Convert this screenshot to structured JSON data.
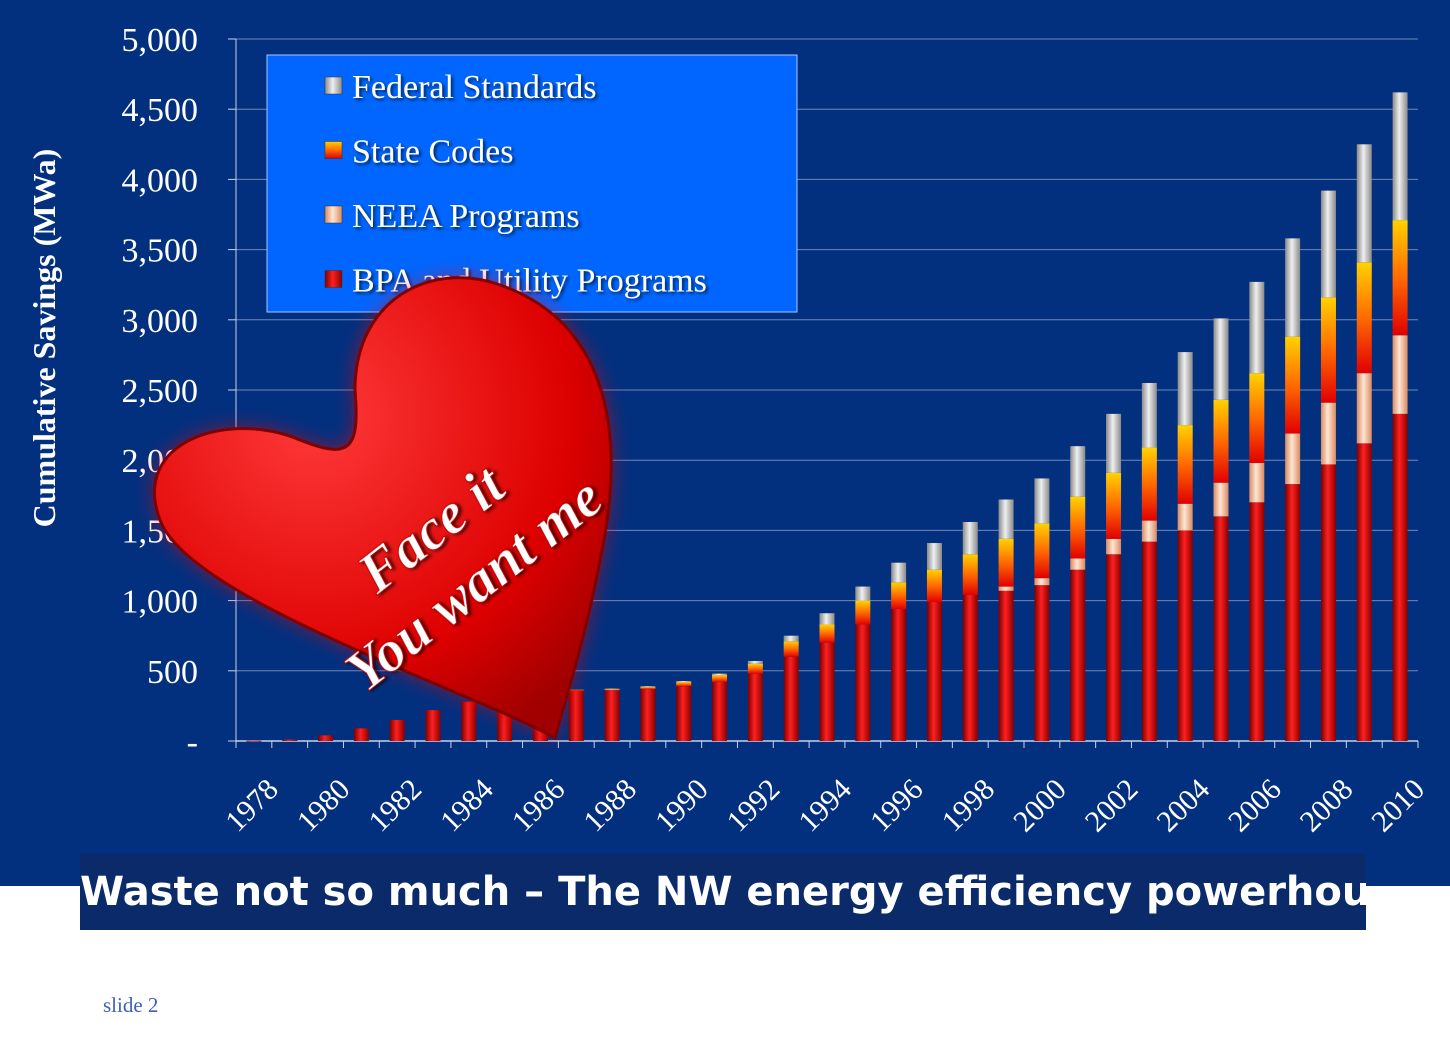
{
  "footer": {
    "title": "Waste not so much – The NW energy efficiency powerhouse"
  },
  "slide_label": "slide 2",
  "sticker": {
    "line1": "Face it",
    "line2": "You want me"
  },
  "colors": {
    "background": "#02307f",
    "legend_bg": "#0066ff",
    "bpa": "#d00000",
    "neea": "#f2b78f",
    "state": "#ffb000",
    "federal": "#b8b8b8",
    "heart": "#e00000"
  },
  "chart_data": {
    "type": "bar",
    "stacked": true,
    "title": "",
    "ylabel": "Cumulative Savings (MWa)",
    "xlabel": "",
    "ylim": [
      0,
      5000
    ],
    "grid": true,
    "legend_position": "top-left",
    "ytick_labels": [
      "-",
      "500",
      "1,000",
      "1,500",
      "2,000",
      "2,500",
      "3,000",
      "3,500",
      "4,000",
      "4,500",
      "5,000"
    ],
    "categories": [
      "1978",
      "1979",
      "1980",
      "1981",
      "1982",
      "1983",
      "1984",
      "1985",
      "1986",
      "1987",
      "1988",
      "1989",
      "1990",
      "1991",
      "1992",
      "1993",
      "1994",
      "1995",
      "1996",
      "1997",
      "1998",
      "1999",
      "2000",
      "2001",
      "2002",
      "2003",
      "2004",
      "2005",
      "2006",
      "2007",
      "2008",
      "2009",
      "2010"
    ],
    "xtick_labels": [
      "1978",
      "1980",
      "1982",
      "1984",
      "1986",
      "1988",
      "1990",
      "1992",
      "1994",
      "1996",
      "1998",
      "2000",
      "2002",
      "2004",
      "2006",
      "2008",
      "2010"
    ],
    "series": [
      {
        "name": "BPA and Utility Programs",
        "color": "#d00000",
        "values": [
          2,
          10,
          40,
          90,
          150,
          220,
          280,
          330,
          350,
          360,
          360,
          370,
          390,
          420,
          480,
          600,
          700,
          830,
          940,
          990,
          1040,
          1070,
          1110,
          1220,
          1330,
          1420,
          1500,
          1600,
          1700,
          1830,
          1970,
          2120,
          2330
        ]
      },
      {
        "name": "NEEA Programs",
        "color": "#f2b78f",
        "values": [
          0,
          0,
          0,
          0,
          0,
          0,
          0,
          0,
          0,
          0,
          0,
          0,
          0,
          0,
          0,
          0,
          0,
          0,
          0,
          0,
          0,
          30,
          50,
          80,
          110,
          150,
          190,
          240,
          280,
          360,
          440,
          500,
          560
        ]
      },
      {
        "name": "State Codes",
        "color": "#ffb000",
        "values": [
          0,
          0,
          0,
          0,
          0,
          0,
          0,
          0,
          0,
          5,
          10,
          15,
          30,
          50,
          70,
          110,
          130,
          170,
          190,
          230,
          290,
          340,
          390,
          440,
          470,
          520,
          560,
          590,
          640,
          690,
          750,
          790,
          820
        ]
      },
      {
        "name": "Federal Standards",
        "color": "#b8b8b8",
        "values": [
          0,
          0,
          0,
          0,
          0,
          0,
          0,
          0,
          0,
          0,
          3,
          5,
          7,
          10,
          20,
          40,
          80,
          100,
          140,
          190,
          230,
          280,
          320,
          360,
          420,
          460,
          520,
          580,
          650,
          700,
          760,
          840,
          910
        ]
      }
    ]
  }
}
